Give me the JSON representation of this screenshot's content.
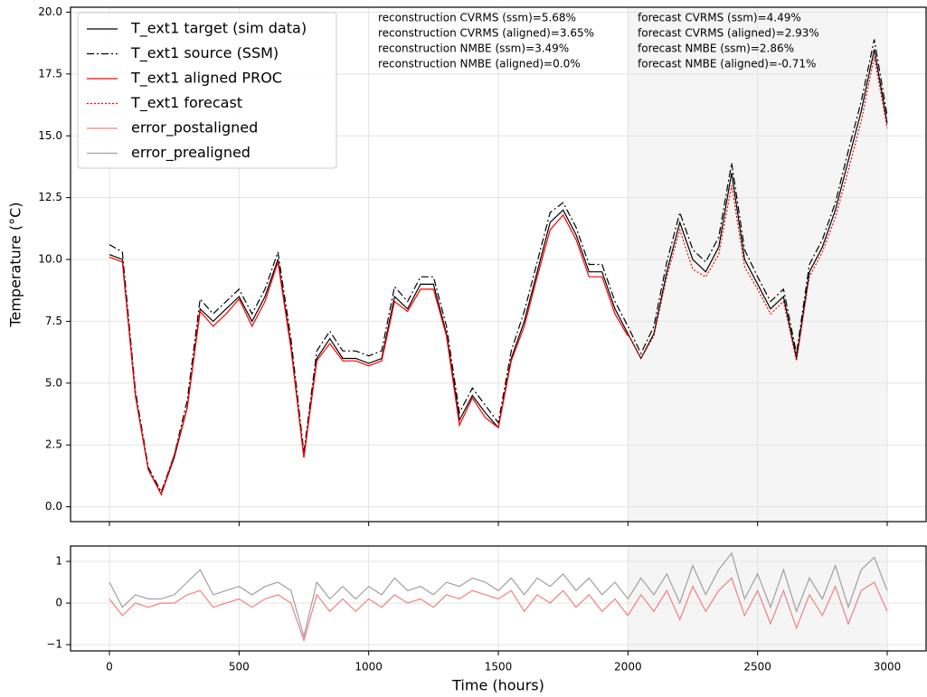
{
  "chart_data": [
    {
      "type": "line",
      "ylabel": "Temperature (°C)",
      "x": [
        0,
        50,
        100,
        150,
        200,
        250,
        300,
        350,
        400,
        450,
        500,
        550,
        600,
        650,
        700,
        750,
        800,
        850,
        900,
        950,
        1000,
        1050,
        1100,
        1150,
        1200,
        1250,
        1300,
        1350,
        1400,
        1450,
        1500,
        1550,
        1600,
        1650,
        1700,
        1750,
        1800,
        1850,
        1900,
        1950,
        2000,
        2050,
        2100,
        2150,
        2200,
        2250,
        2300,
        2350,
        2400,
        2450,
        2500,
        2550,
        2600,
        2650,
        2700,
        2750,
        2800,
        2850,
        2900,
        2950,
        3000
      ],
      "xlim": [
        -150,
        3150
      ],
      "ylim": [
        -0.6,
        20.2
      ],
      "xticks": [
        0,
        500,
        1000,
        1500,
        2000,
        2500,
        3000
      ],
      "show_xtick_labels": false,
      "yticks": [
        {
          "value": 0,
          "label": "0.0"
        },
        2.5,
        {
          "value": 5,
          "label": "5.0"
        },
        7.5,
        {
          "value": 10,
          "label": "10.0"
        },
        12.5,
        {
          "value": 15,
          "label": "15.0"
        },
        17.5,
        {
          "value": 20,
          "label": "20.0"
        }
      ],
      "grid": true,
      "shaded_span": [
        2000,
        3000
      ],
      "shade_color": "#f5f5f5",
      "legend": "upper left",
      "series": [
        {
          "name": "T_ext1 target (sim data)",
          "color": "#000000",
          "linestyle": "-",
          "values": [
            10.2,
            10.0,
            4.5,
            1.5,
            0.5,
            2.0,
            4.0,
            8.0,
            7.5,
            8.0,
            8.5,
            7.5,
            8.5,
            10.0,
            6.5,
            2.0,
            6.0,
            6.8,
            6.0,
            6.0,
            5.8,
            6.0,
            8.5,
            8.0,
            9.0,
            9.0,
            7.0,
            3.5,
            4.5,
            3.8,
            3.2,
            6.0,
            7.5,
            9.5,
            11.5,
            12.0,
            11.0,
            9.5,
            9.5,
            8.0,
            7.0,
            6.0,
            7.0,
            9.5,
            11.5,
            10.0,
            9.5,
            10.5,
            13.5,
            10.0,
            9.0,
            8.0,
            8.5,
            6.0,
            9.5,
            10.5,
            12.0,
            14.0,
            16.0,
            18.5,
            15.5
          ]
        },
        {
          "name": "T_ext1 source (SSM)",
          "color": "#000000",
          "linestyle": "-.",
          "values": [
            10.6,
            10.3,
            4.7,
            1.6,
            0.6,
            2.1,
            4.3,
            8.4,
            7.8,
            8.3,
            8.8,
            7.8,
            8.8,
            10.3,
            6.8,
            2.2,
            6.3,
            7.1,
            6.3,
            6.3,
            6.1,
            6.3,
            8.9,
            8.3,
            9.3,
            9.3,
            7.3,
            3.8,
            4.8,
            4.1,
            3.4,
            6.3,
            7.9,
            9.9,
            11.9,
            12.3,
            11.3,
            9.8,
            9.8,
            8.3,
            7.3,
            6.2,
            7.3,
            9.9,
            11.9,
            10.4,
            9.9,
            10.9,
            13.9,
            10.4,
            9.3,
            8.3,
            8.8,
            6.2,
            9.8,
            10.8,
            12.3,
            14.4,
            16.4,
            18.9,
            15.8
          ]
        },
        {
          "name": "T_ext1 aligned PROC",
          "color": "#ff0000",
          "linestyle": "-",
          "values": [
            10.1,
            9.9,
            4.5,
            1.5,
            0.5,
            2.1,
            4.0,
            7.9,
            7.3,
            7.8,
            8.4,
            7.3,
            8.3,
            9.9,
            6.4,
            2.0,
            5.9,
            6.6,
            5.9,
            5.9,
            5.7,
            5.9,
            8.3,
            7.9,
            8.8,
            8.8,
            6.9,
            3.3,
            4.4,
            3.6,
            3.2,
            5.9,
            7.3,
            9.3,
            11.2,
            11.8,
            10.8,
            9.3,
            9.3,
            7.8,
            6.9,
            null,
            null,
            null,
            null,
            null,
            null,
            null,
            null,
            null,
            null,
            null,
            null,
            null,
            null,
            null,
            null,
            null,
            null,
            null,
            null
          ]
        },
        {
          "name": "T_ext1 forecast",
          "color": "#ff0000",
          "linestyle": ":",
          "values": [
            null,
            null,
            null,
            null,
            null,
            null,
            null,
            null,
            null,
            null,
            null,
            null,
            null,
            null,
            null,
            null,
            null,
            null,
            null,
            null,
            null,
            null,
            null,
            null,
            null,
            null,
            null,
            null,
            null,
            null,
            null,
            null,
            null,
            null,
            null,
            null,
            null,
            null,
            null,
            null,
            7.0,
            6.0,
            6.9,
            9.3,
            11.2,
            9.6,
            9.3,
            10.2,
            13.0,
            9.7,
            8.8,
            7.8,
            8.3,
            5.9,
            9.3,
            10.3,
            11.7,
            13.6,
            15.6,
            18.2,
            15.3
          ]
        }
      ],
      "annotations": [
        {
          "text": "reconstruction CVRMS (ssm)=5.68%",
          "color": "#000000"
        },
        {
          "text": "reconstruction CVRMS (aligned)=3.65%",
          "color": "#ff0000"
        },
        {
          "text": "reconstruction NMBE (ssm)=3.49%",
          "color": "#000000"
        },
        {
          "text": "reconstruction NMBE (aligned)=0.0%",
          "color": "#ff0000"
        },
        {
          "text": "forecast CVRMS (ssm)=4.49%",
          "color": "#000000"
        },
        {
          "text": "forecast CVRMS (aligned)=2.93%",
          "color": "#ff0000"
        },
        {
          "text": "forecast NMBE (ssm)=2.86%",
          "color": "#000000"
        },
        {
          "text": "forecast NMBE (aligned)=-0.71%",
          "color": "#ff0000"
        }
      ]
    },
    {
      "type": "line",
      "xlabel": "Time (hours)",
      "x": [
        0,
        50,
        100,
        150,
        200,
        250,
        300,
        350,
        400,
        450,
        500,
        550,
        600,
        650,
        700,
        750,
        800,
        850,
        900,
        950,
        1000,
        1050,
        1100,
        1150,
        1200,
        1250,
        1300,
        1350,
        1400,
        1450,
        1500,
        1550,
        1600,
        1650,
        1700,
        1750,
        1800,
        1850,
        1900,
        1950,
        2000,
        2050,
        2100,
        2150,
        2200,
        2250,
        2300,
        2350,
        2400,
        2450,
        2500,
        2550,
        2600,
        2650,
        2700,
        2750,
        2800,
        2850,
        2900,
        2950,
        3000
      ],
      "xlim": [
        -150,
        3150
      ],
      "ylim": [
        -1.15,
        1.37
      ],
      "xticks": [
        0,
        500,
        1000,
        1500,
        2000,
        2500,
        3000
      ],
      "show_xtick_labels": true,
      "yticks": [
        {
          "value": -1,
          "label": "−1"
        },
        0,
        1
      ],
      "grid": true,
      "shaded_span": [
        2000,
        3000
      ],
      "shade_color": "#f5f5f5",
      "series": [
        {
          "name": "error_postaligned",
          "color": "#f08080",
          "linestyle": "-",
          "values": [
            0.1,
            -0.3,
            0,
            -0.1,
            0,
            0,
            0.2,
            0.3,
            -0.1,
            0,
            0.1,
            -0.1,
            0.1,
            0.2,
            0,
            -0.9,
            0.2,
            -0.2,
            0.1,
            -0.2,
            0.1,
            -0.1,
            0.2,
            0,
            0.1,
            -0.1,
            0.2,
            0.1,
            0.3,
            0.2,
            0.1,
            0.3,
            -0.2,
            0.2,
            0,
            0.3,
            -0.1,
            0.2,
            -0.2,
            0.1,
            -0.3,
            0.2,
            -0.2,
            0.3,
            -0.4,
            0.4,
            -0.2,
            0.3,
            0.6,
            -0.3,
            0.3,
            -0.5,
            0.3,
            -0.6,
            0.2,
            -0.3,
            0.4,
            -0.5,
            0.3,
            0.5,
            -0.2
          ]
        },
        {
          "name": "error_prealigned",
          "color": "#a0a0a0",
          "linestyle": "-",
          "values": [
            0.5,
            -0.1,
            0.2,
            0.1,
            0.1,
            0.2,
            0.5,
            0.8,
            0.2,
            0.3,
            0.4,
            0.2,
            0.4,
            0.5,
            0.3,
            -0.8,
            0.5,
            0.1,
            0.4,
            0.1,
            0.4,
            0.2,
            0.6,
            0.3,
            0.4,
            0.2,
            0.5,
            0.4,
            0.6,
            0.5,
            0.3,
            0.6,
            0.2,
            0.6,
            0.4,
            0.7,
            0.3,
            0.6,
            0.2,
            0.5,
            0.1,
            0.6,
            0.2,
            0.7,
            0,
            0.9,
            0.2,
            0.8,
            1.2,
            0.1,
            0.7,
            -0.1,
            0.8,
            -0.2,
            0.6,
            0.1,
            0.9,
            -0.1,
            0.8,
            1.1,
            0.3
          ]
        }
      ]
    }
  ]
}
